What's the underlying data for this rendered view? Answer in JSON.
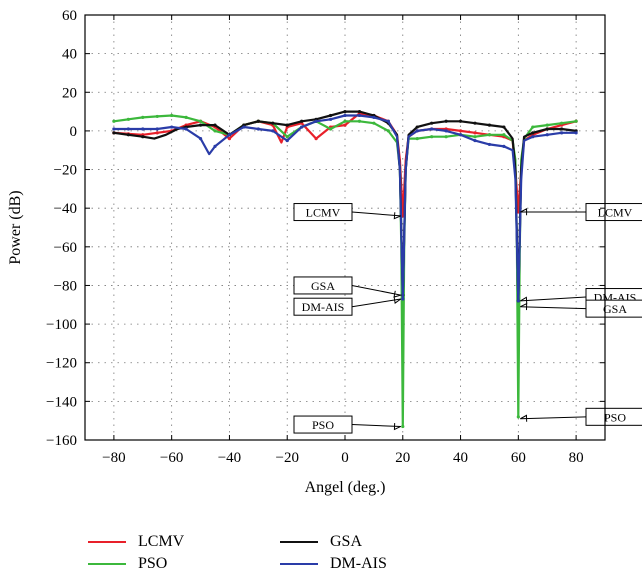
{
  "chart_data": {
    "type": "line",
    "xlabel": "Angel (deg.)",
    "ylabel": "Power (dB)",
    "xlim": [
      -90,
      90
    ],
    "ylim": [
      -160,
      60
    ],
    "xticks": [
      -80,
      -60,
      -40,
      -20,
      0,
      20,
      40,
      60,
      80
    ],
    "yticks": [
      60,
      40,
      20,
      0,
      -20,
      -40,
      -60,
      -80,
      -100,
      -120,
      -140,
      -160
    ],
    "xtick_labels": [
      "−80",
      "−60",
      "−40",
      "−20",
      "0",
      "20",
      "40",
      "60",
      "80"
    ],
    "ytick_labels": [
      "60",
      "40",
      "20",
      "0",
      "−20",
      "−40",
      "−60",
      "−80",
      "−100",
      "−120",
      "−140",
      "−160"
    ],
    "grid": true,
    "legend_position": "bottom",
    "series": [
      {
        "name": "LCMV",
        "color": "#e8202a",
        "x": [
          -80,
          -75,
          -70,
          -65,
          -60,
          -55,
          -50,
          -45,
          -40,
          -35,
          -30,
          -25,
          -22,
          -20,
          -15,
          -10,
          -5,
          0,
          5,
          10,
          15,
          18,
          19,
          20,
          21,
          22,
          25,
          30,
          35,
          40,
          45,
          50,
          55,
          58,
          59,
          60,
          61,
          62,
          65,
          70,
          75,
          80
        ],
        "y": [
          -1,
          -1.5,
          -2,
          -1,
          0,
          3,
          5,
          2,
          -4,
          3,
          5,
          3,
          -6,
          2,
          4,
          -4,
          2,
          3,
          9,
          8,
          5,
          -2,
          -15,
          -44,
          -15,
          -3,
          0,
          1,
          1,
          0,
          -1,
          -2,
          -3,
          -5,
          -20,
          -42,
          -20,
          -5,
          -2,
          1,
          3,
          5
        ]
      },
      {
        "name": "PSO",
        "color": "#3cb83c",
        "x": [
          -80,
          -75,
          -70,
          -65,
          -60,
          -55,
          -50,
          -45,
          -40,
          -35,
          -30,
          -25,
          -20,
          -15,
          -10,
          -5,
          0,
          5,
          10,
          15,
          18,
          19,
          19.5,
          20,
          20.5,
          21,
          22,
          25,
          30,
          35,
          40,
          45,
          50,
          55,
          58,
          59,
          59.5,
          60,
          60.5,
          61,
          62,
          65,
          70,
          75,
          80
        ],
        "y": [
          5,
          6,
          7,
          7.5,
          8,
          7,
          5,
          0,
          -2,
          3,
          5,
          4,
          -3,
          2,
          5,
          1,
          5,
          5,
          4,
          0,
          -6,
          -20,
          -60,
          -153,
          -60,
          -20,
          -4,
          -4,
          -3,
          -3,
          -2,
          -3,
          -2,
          -2,
          -5,
          -15,
          -60,
          -148,
          -60,
          -15,
          -4,
          2,
          3,
          4,
          5
        ]
      },
      {
        "name": "GSA",
        "color": "#111111",
        "x": [
          -80,
          -75,
          -70,
          -66,
          -62,
          -58,
          -55,
          -50,
          -45,
          -40,
          -35,
          -30,
          -25,
          -20,
          -15,
          -10,
          -5,
          0,
          5,
          10,
          15,
          18,
          19,
          20,
          21,
          22,
          25,
          30,
          35,
          40,
          45,
          50,
          55,
          58,
          59,
          60,
          61,
          62,
          65,
          70,
          75,
          80
        ],
        "y": [
          -1,
          -2,
          -3,
          -4,
          -2,
          1,
          2,
          3,
          3,
          -2,
          3,
          5,
          4,
          3,
          5,
          6,
          8,
          10,
          10,
          8,
          4,
          -2,
          -20,
          -85,
          -20,
          -2,
          2,
          4,
          5,
          5,
          4,
          3,
          2,
          -4,
          -20,
          -88,
          -20,
          -3,
          -1,
          1,
          1,
          0
        ]
      },
      {
        "name": "DM-AIS",
        "color": "#2a3ca8",
        "x": [
          -80,
          -75,
          -70,
          -65,
          -60,
          -55,
          -50,
          -47,
          -45,
          -40,
          -35,
          -30,
          -25,
          -20,
          -15,
          -10,
          -5,
          0,
          5,
          10,
          15,
          18,
          19,
          20,
          21,
          22,
          25,
          30,
          35,
          40,
          45,
          50,
          55,
          58,
          59,
          60,
          61,
          62,
          65,
          70,
          75,
          80
        ],
        "y": [
          1,
          1,
          1,
          1,
          2,
          1,
          -4,
          -12,
          -8,
          -2,
          2,
          1,
          0,
          -5,
          2,
          5,
          6,
          8,
          8,
          7,
          5,
          -3,
          -20,
          -87,
          -20,
          -3,
          0,
          1,
          0,
          -2,
          -5,
          -7,
          -8,
          -10,
          -25,
          -88,
          -25,
          -5,
          -3,
          -2,
          -1,
          -1
        ]
      }
    ],
    "annotations": [
      {
        "text": "LCMV",
        "side": "left",
        "point": [
          20,
          -44
        ]
      },
      {
        "text": "GSA",
        "side": "left",
        "point": [
          20,
          -85
        ]
      },
      {
        "text": "DM-AIS",
        "side": "left",
        "point": [
          20,
          -87
        ]
      },
      {
        "text": "PSO",
        "side": "left",
        "point": [
          20,
          -153
        ]
      },
      {
        "text": "LCMV",
        "side": "right",
        "point": [
          60,
          -42
        ]
      },
      {
        "text": "DM-AIS",
        "side": "right",
        "point": [
          60,
          -88
        ]
      },
      {
        "text": "GSA",
        "side": "right",
        "point": [
          60,
          -91
        ]
      },
      {
        "text": "PSO",
        "side": "right",
        "point": [
          60,
          -149
        ]
      }
    ]
  },
  "legend": {
    "items": [
      {
        "label": "LCMV",
        "color": "#e8202a"
      },
      {
        "label": "GSA",
        "color": "#111111"
      },
      {
        "label": "PSO",
        "color": "#3cb83c"
      },
      {
        "label": "DM-AIS",
        "color": "#2a3ca8"
      }
    ]
  }
}
